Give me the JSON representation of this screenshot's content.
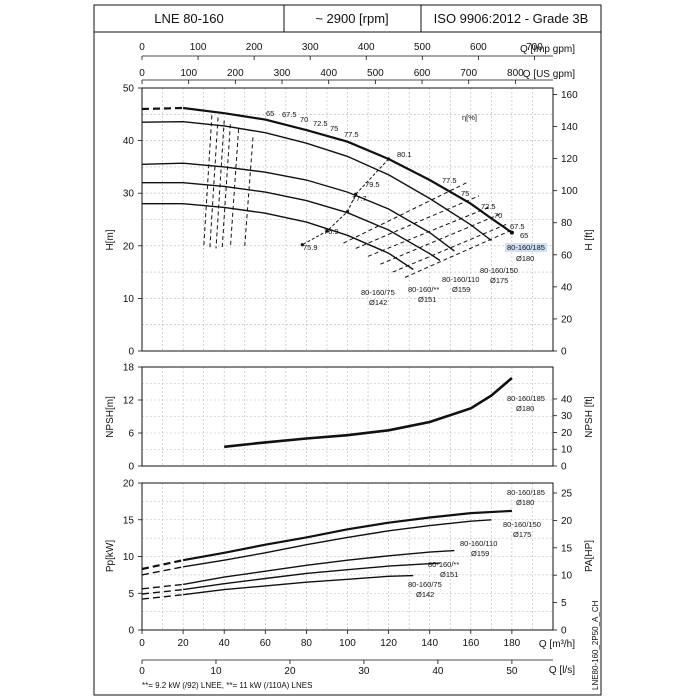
{
  "header": {
    "model": "LNE 80-160",
    "speed": "~ 2900 [rpm]",
    "standard": "ISO 9906:2012 - Grade 3B"
  },
  "top_axes": {
    "imp_label": "Q [Imp gpm]",
    "imp_ticks": [
      0,
      100,
      200,
      300,
      400,
      500,
      600,
      700
    ],
    "us_label": "Q [US gpm]",
    "us_ticks": [
      0,
      100,
      200,
      300,
      400,
      500,
      600,
      700,
      800
    ]
  },
  "bottom_axes": {
    "m3h_label": "Q [m³/h]",
    "m3h_ticks": [
      0,
      20,
      40,
      60,
      80,
      100,
      120,
      140,
      160,
      180
    ],
    "ls_label": "Q [l/s]",
    "ls_ticks": [
      0,
      10,
      20,
      30,
      40,
      50
    ]
  },
  "footnote": "**= 9.2 kW (/92) LNEE, **= 11 kW (/110A) LNES",
  "drawing_code": "LNE80-160_2P50_A_CH",
  "colors": {
    "line": "#111111",
    "grid": "#b9b9b9",
    "highlight": "#cfe1f3"
  },
  "chart_data": [
    {
      "type": "line",
      "name": "head",
      "ylabel_left": "H[m]",
      "ylabel_right": "H [ft]",
      "xlim": [
        0,
        200
      ],
      "ylim": [
        0,
        50
      ],
      "yticks_left": [
        0,
        10,
        20,
        30,
        40,
        50
      ],
      "yticks_right": [
        0,
        20,
        40,
        60,
        80,
        100,
        120,
        140,
        160
      ],
      "efficiency_label": "η[%]",
      "series": [
        {
          "name": "80-160/185",
          "dia": "Ø180",
          "highlight": true,
          "dashed_end": 24,
          "points": [
            [
              0,
              46
            ],
            [
              20,
              46.2
            ],
            [
              40,
              45.2
            ],
            [
              60,
              44
            ],
            [
              80,
              42
            ],
            [
              100,
              39.8
            ],
            [
              120,
              36.5
            ],
            [
              140,
              32.5
            ],
            [
              160,
              28
            ],
            [
              170,
              25.2
            ],
            [
              180,
              22.5
            ]
          ]
        },
        {
          "name": "80-160/150",
          "dia": "Ø175",
          "points": [
            [
              0,
              43.5
            ],
            [
              20,
              43.6
            ],
            [
              40,
              42.8
            ],
            [
              60,
              41.5
            ],
            [
              80,
              39.5
            ],
            [
              100,
              37
            ],
            [
              120,
              33.5
            ],
            [
              140,
              29
            ],
            [
              160,
              24
            ],
            [
              170,
              21
            ]
          ]
        },
        {
          "name": "80-160/110",
          "dia": "Ø159",
          "points": [
            [
              0,
              35.5
            ],
            [
              20,
              35.7
            ],
            [
              40,
              35
            ],
            [
              60,
              34
            ],
            [
              80,
              32.5
            ],
            [
              100,
              30.2
            ],
            [
              120,
              27
            ],
            [
              140,
              22.5
            ],
            [
              152,
              19
            ]
          ]
        },
        {
          "name": "80-160/**",
          "dia": "Ø151",
          "points": [
            [
              0,
              32
            ],
            [
              20,
              32
            ],
            [
              40,
              31.3
            ],
            [
              60,
              30.2
            ],
            [
              80,
              28.6
            ],
            [
              100,
              26.3
            ],
            [
              120,
              23
            ],
            [
              140,
              18.5
            ],
            [
              145,
              17.2
            ]
          ]
        },
        {
          "name": "80-160/75",
          "dia": "Ø142",
          "points": [
            [
              0,
              28
            ],
            [
              20,
              28
            ],
            [
              40,
              27.3
            ],
            [
              60,
              26.2
            ],
            [
              80,
              24.5
            ],
            [
              100,
              22
            ],
            [
              120,
              18.6
            ],
            [
              132,
              15.5
            ]
          ]
        }
      ],
      "efficiency_labels_left": [
        "65",
        "67.5",
        "70",
        "72.5",
        "75",
        "77.5"
      ],
      "efficiency_labels_right": [
        "77.5",
        "75",
        "72.5",
        "70",
        "67.5",
        "65"
      ],
      "bep_labels": [
        "80.1",
        "79.5",
        "77.7",
        "76.9",
        "75.9"
      ]
    },
    {
      "type": "line",
      "name": "npsh",
      "ylabel_left": "NPSH[m]",
      "ylabel_right": "NPSH [ft]",
      "xlim": [
        0,
        200
      ],
      "ylim": [
        0,
        18
      ],
      "yticks_left": [
        0,
        6,
        12,
        18
      ],
      "yticks_right": [
        0,
        10,
        20,
        30,
        40
      ],
      "series": [
        {
          "name": "80-160/185",
          "dia": "Ø180",
          "points": [
            [
              40,
              3.5
            ],
            [
              60,
              4.3
            ],
            [
              80,
              5
            ],
            [
              100,
              5.6
            ],
            [
              120,
              6.5
            ],
            [
              140,
              8
            ],
            [
              160,
              10.5
            ],
            [
              170,
              12.8
            ],
            [
              180,
              16
            ]
          ]
        }
      ]
    },
    {
      "type": "line",
      "name": "power",
      "ylabel_left": "Pp[kW]",
      "ylabel_right": "PA[HP]",
      "xlim": [
        0,
        200
      ],
      "ylim": [
        0,
        20
      ],
      "yticks_left": [
        0,
        5,
        10,
        15,
        20
      ],
      "yticks_right": [
        0,
        5,
        10,
        15,
        20,
        25
      ],
      "series": [
        {
          "name": "80-160/185",
          "dia": "Ø180",
          "dashed_end": 38,
          "points": [
            [
              0,
              8.3
            ],
            [
              20,
              9.5
            ],
            [
              40,
              10.5
            ],
            [
              60,
              11.6
            ],
            [
              80,
              12.6
            ],
            [
              100,
              13.7
            ],
            [
              120,
              14.6
            ],
            [
              140,
              15.3
            ],
            [
              160,
              15.9
            ],
            [
              180,
              16.2
            ]
          ]
        },
        {
          "name": "80-160/150",
          "dia": "Ø175",
          "dashed_end": 38,
          "points": [
            [
              0,
              7.5
            ],
            [
              20,
              8.6
            ],
            [
              40,
              9.5
            ],
            [
              60,
              10.5
            ],
            [
              80,
              11.6
            ],
            [
              100,
              12.6
            ],
            [
              120,
              13.5
            ],
            [
              140,
              14.2
            ],
            [
              160,
              14.8
            ],
            [
              170,
              15
            ]
          ]
        },
        {
          "name": "80-160/110",
          "dia": "Ø159",
          "dashed_end": 30,
          "points": [
            [
              0,
              5.6
            ],
            [
              20,
              6.2
            ],
            [
              40,
              7.2
            ],
            [
              60,
              8
            ],
            [
              80,
              8.8
            ],
            [
              100,
              9.5
            ],
            [
              120,
              10.1
            ],
            [
              140,
              10.6
            ],
            [
              152,
              10.8
            ]
          ]
        },
        {
          "name": "80-160/**",
          "dia": "Ø151",
          "dashed_end": 30,
          "points": [
            [
              0,
              4.9
            ],
            [
              20,
              5.5
            ],
            [
              40,
              6.3
            ],
            [
              60,
              7
            ],
            [
              80,
              7.7
            ],
            [
              100,
              8.2
            ],
            [
              120,
              8.7
            ],
            [
              145,
              9.1
            ]
          ]
        },
        {
          "name": "80-160/75",
          "dia": "Ø142",
          "dashed_end": 30,
          "points": [
            [
              0,
              4.2
            ],
            [
              20,
              4.8
            ],
            [
              40,
              5.5
            ],
            [
              60,
              6
            ],
            [
              80,
              6.5
            ],
            [
              100,
              6.9
            ],
            [
              120,
              7.3
            ],
            [
              132,
              7.4
            ]
          ]
        }
      ]
    }
  ]
}
